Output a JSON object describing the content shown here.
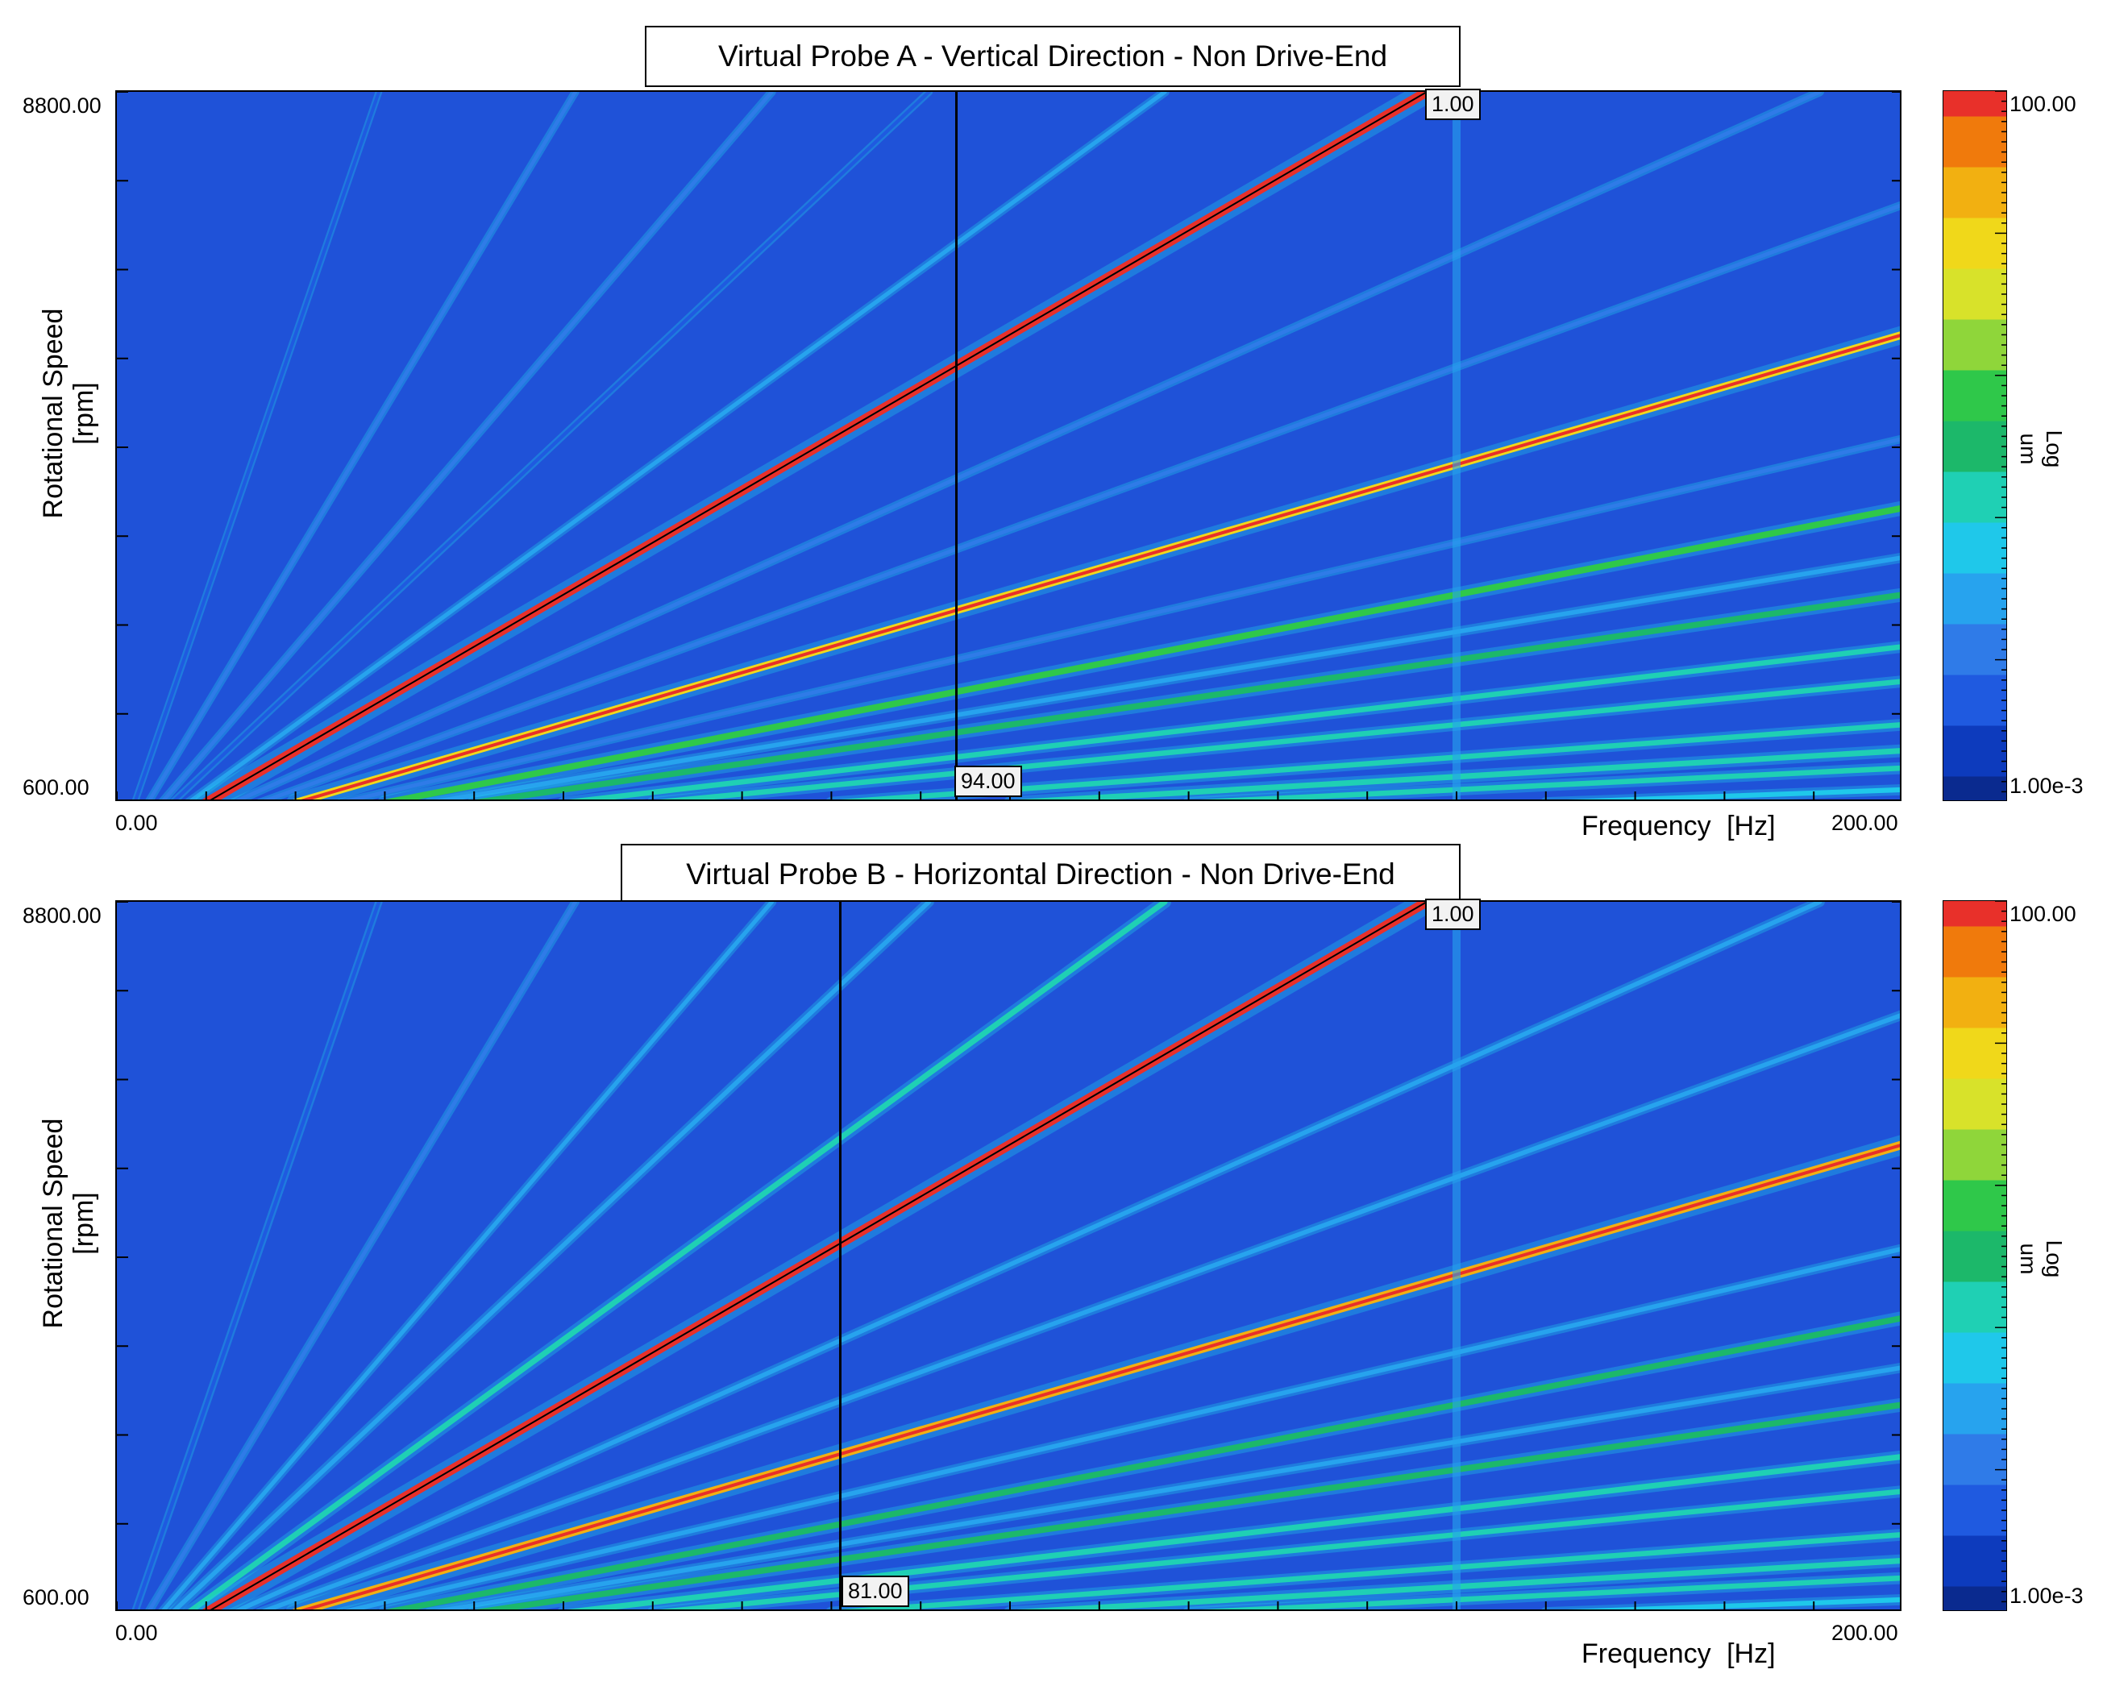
{
  "chart_data": [
    {
      "type": "heatmap",
      "title": "Virtual Probe A - Vertical Direction - Non Drive-End",
      "xlabel": "Frequency [Hz]",
      "ylabel": [
        "Rotational Speed",
        "[rpm]"
      ],
      "xlim": [
        0,
        200
      ],
      "ylim": [
        600,
        8800
      ],
      "x_tick_labels": [
        "0.00",
        "200.00"
      ],
      "y_tick_labels": [
        "600.00",
        "8800.00"
      ],
      "colorbar": {
        "label": [
          "Log",
          "um"
        ],
        "max_label": "100.00",
        "min_label": "1.00e-3",
        "scale": "log"
      },
      "order_cursor": {
        "label": "1.00",
        "order": 1.0
      },
      "frequency_cursor": {
        "label": "94.00",
        "frequency_hz": 94.0
      },
      "order_lines": [
        {
          "order": 0.2,
          "level": 0.12
        },
        {
          "order": 0.35,
          "level": 0.18
        },
        {
          "order": 0.5,
          "level": 0.2
        },
        {
          "order": 0.62,
          "level": 0.15
        },
        {
          "order": 0.8,
          "level": 0.25
        },
        {
          "order": 1.0,
          "level": 1.0
        },
        {
          "order": 1.3,
          "level": 0.22
        },
        {
          "order": 1.6,
          "level": 0.2
        },
        {
          "order": 2.0,
          "level": 0.75
        },
        {
          "order": 2.5,
          "level": 0.2
        },
        {
          "order": 3.0,
          "level": 0.55
        },
        {
          "order": 3.5,
          "level": 0.3
        },
        {
          "order": 4.0,
          "level": 0.5
        },
        {
          "order": 5.0,
          "level": 0.4
        },
        {
          "order": 6.0,
          "level": 0.4
        },
        {
          "order": 8.0,
          "level": 0.4
        },
        {
          "order": 10.0,
          "level": 0.45
        },
        {
          "order": 12.0,
          "level": 0.4
        },
        {
          "order": 16.0,
          "level": 0.35
        },
        {
          "order": 20.0,
          "level": 0.3
        }
      ],
      "constant_frequency_lines_hz": [
        150
      ]
    },
    {
      "type": "heatmap",
      "title": "Virtual Probe B - Horizontal Direction - Non Drive-End",
      "xlabel": "Frequency [Hz]",
      "ylabel": [
        "Rotational Speed",
        "[rpm]"
      ],
      "xlim": [
        0,
        200
      ],
      "ylim": [
        600,
        8800
      ],
      "x_tick_labels": [
        "0.00",
        "200.00"
      ],
      "y_tick_labels": [
        "600.00",
        "8800.00"
      ],
      "colorbar": {
        "label": [
          "Log",
          "um"
        ],
        "max_label": "100.00",
        "min_label": "1.00e-3",
        "scale": "log"
      },
      "order_cursor": {
        "label": "1.00",
        "order": 1.0
      },
      "frequency_cursor": {
        "label": "81.00",
        "frequency_hz": 81.0
      },
      "order_lines": [
        {
          "order": 0.2,
          "level": 0.15
        },
        {
          "order": 0.35,
          "level": 0.2
        },
        {
          "order": 0.5,
          "level": 0.25
        },
        {
          "order": 0.62,
          "level": 0.3
        },
        {
          "order": 0.8,
          "level": 0.45
        },
        {
          "order": 1.0,
          "level": 1.0
        },
        {
          "order": 1.3,
          "level": 0.3
        },
        {
          "order": 1.6,
          "level": 0.3
        },
        {
          "order": 2.0,
          "level": 0.85
        },
        {
          "order": 2.5,
          "level": 0.3
        },
        {
          "order": 3.0,
          "level": 0.5
        },
        {
          "order": 3.5,
          "level": 0.3
        },
        {
          "order": 4.0,
          "level": 0.5
        },
        {
          "order": 5.0,
          "level": 0.45
        },
        {
          "order": 6.0,
          "level": 0.4
        },
        {
          "order": 8.0,
          "level": 0.4
        },
        {
          "order": 10.0,
          "level": 0.45
        },
        {
          "order": 12.0,
          "level": 0.4
        },
        {
          "order": 16.0,
          "level": 0.35
        },
        {
          "order": 20.0,
          "level": 0.3
        }
      ],
      "constant_frequency_lines_hz": [
        150
      ]
    }
  ],
  "colors": {
    "background": "#1f52d8",
    "colormap": [
      "#0a2a8f",
      "#0d3bbd",
      "#1f5ae0",
      "#2f7be8",
      "#27a3ee",
      "#1fc8ea",
      "#1fd0b4",
      "#1cb86a",
      "#2fc84a",
      "#8fd63a",
      "#d8e22a",
      "#f0d81a",
      "#f2b011",
      "#f07a0c",
      "#e8302a"
    ]
  }
}
